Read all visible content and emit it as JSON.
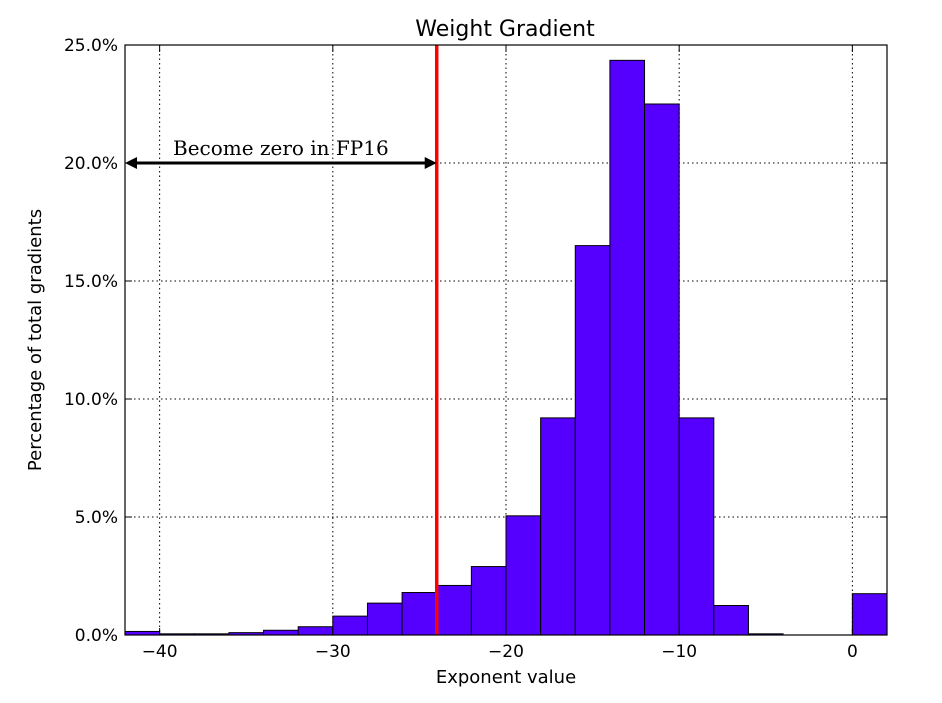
{
  "chart_data": {
    "type": "bar",
    "title": "Weight Gradient",
    "xlabel": "Exponent value",
    "ylabel": "Percentage of total gradients",
    "xlim": [
      -42,
      2
    ],
    "ylim": [
      0,
      25
    ],
    "bin_width": 2,
    "x_ticks": [
      -40,
      -30,
      -20,
      -10,
      0
    ],
    "x_tick_labels": [
      "−40",
      "−30",
      "−20",
      "−10",
      "0"
    ],
    "y_ticks": [
      0,
      5,
      10,
      15,
      20,
      25
    ],
    "y_tick_labels": [
      "0.0%",
      "5.0%",
      "10.0%",
      "15.0%",
      "20.0%",
      "25.0%"
    ],
    "bins": [
      {
        "start": -42,
        "value": 0.15
      },
      {
        "start": -40,
        "value": 0.05
      },
      {
        "start": -38,
        "value": 0.05
      },
      {
        "start": -36,
        "value": 0.1
      },
      {
        "start": -34,
        "value": 0.2
      },
      {
        "start": -32,
        "value": 0.35
      },
      {
        "start": -30,
        "value": 0.8
      },
      {
        "start": -28,
        "value": 1.35
      },
      {
        "start": -26,
        "value": 1.8
      },
      {
        "start": -24,
        "value": 2.1
      },
      {
        "start": -22,
        "value": 2.9
      },
      {
        "start": -20,
        "value": 5.05
      },
      {
        "start": -18,
        "value": 9.2
      },
      {
        "start": -16,
        "value": 16.5
      },
      {
        "start": -14,
        "value": 24.35
      },
      {
        "start": -12,
        "value": 22.5
      },
      {
        "start": -10,
        "value": 9.2
      },
      {
        "start": -8,
        "value": 1.25
      },
      {
        "start": -6,
        "value": 0.05
      },
      {
        "start": -4,
        "value": 0.0
      },
      {
        "start": -2,
        "value": 0.0
      },
      {
        "start": 0,
        "value": 1.75
      }
    ],
    "bar_color": "#5500ff",
    "grid": true,
    "threshold_line": {
      "x": -24,
      "color": "#ff0000"
    },
    "annotation": {
      "text": "Become zero in FP16",
      "y": 20,
      "x_from": -42,
      "x_to": -24
    }
  }
}
